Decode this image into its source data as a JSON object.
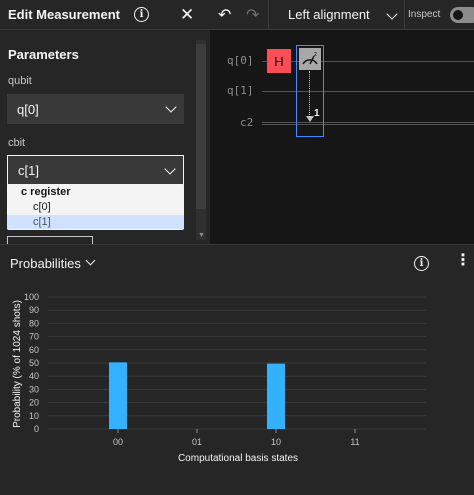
{
  "edit_panel": {
    "title": "Edit Measurement",
    "section_title": "Parameters",
    "qubit_label": "qubit",
    "qubit_value": "q[0]",
    "cbit_label": "cbit",
    "cbit_value": "c[1]",
    "dropdown": {
      "group_label": "c register",
      "options": [
        "c[0]",
        "c[1]"
      ],
      "selected": "c[1]"
    }
  },
  "toolbar": {
    "alignment_value": "Left alignment",
    "inspect_label": "Inspect",
    "inspect_on": false
  },
  "circuit": {
    "wires": [
      "q[0]",
      "q[1]",
      "c2"
    ],
    "gates": [
      {
        "type": "H",
        "label": "H",
        "color": "#fa4d56"
      },
      {
        "type": "measure",
        "target_bit": "1",
        "color": "#a8a8a8"
      }
    ]
  },
  "probabilities": {
    "title": "Probabilities"
  },
  "chart_data": {
    "type": "bar",
    "categories": [
      "00",
      "01",
      "10",
      "11"
    ],
    "values": [
      50.5,
      0,
      49.5,
      0
    ],
    "xlabel": "Computational basis states",
    "ylabel": "Probability (% of 1024 shots)",
    "ylim": [
      0,
      100
    ],
    "yticks": [
      0,
      10,
      20,
      30,
      40,
      50,
      60,
      70,
      80,
      90,
      100
    ],
    "grid": true,
    "bar_color": "#33b1ff"
  },
  "icons": {
    "info": "info-circle-icon",
    "close": "close-icon",
    "undo": "undo-icon",
    "redo": "redo-icon",
    "overflow": "overflow-menu-icon",
    "measure": "measure-gauge-icon"
  }
}
